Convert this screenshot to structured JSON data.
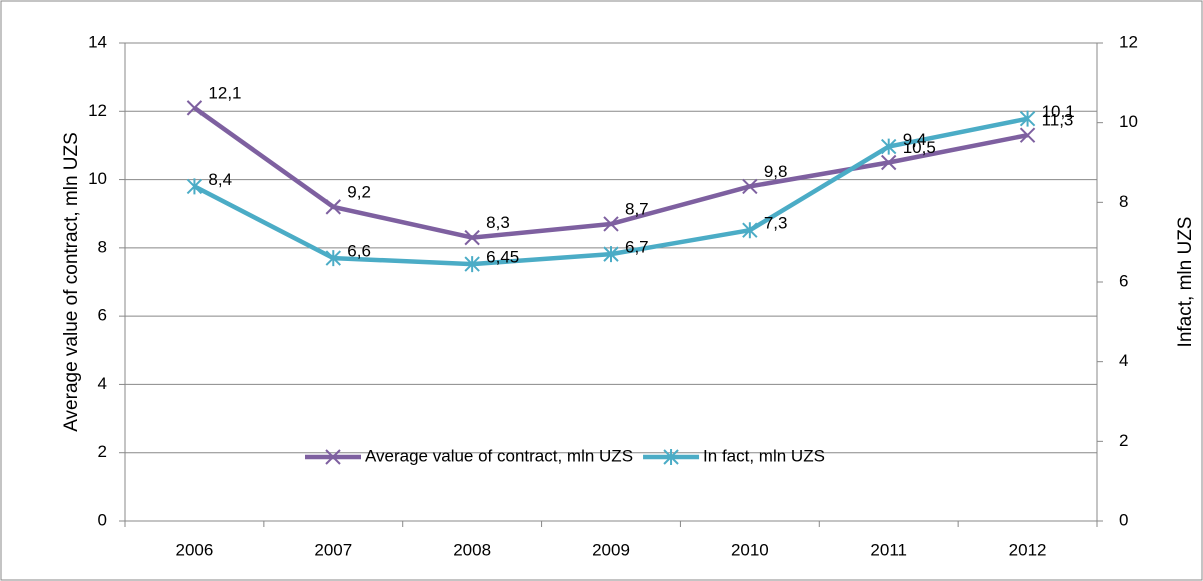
{
  "chart_data": {
    "type": "line",
    "y_label": "Average value of contract, mln UZS",
    "y2_label": "Infact, mln UZS",
    "categories": [
      "2006",
      "2007",
      "2008",
      "2009",
      "2010",
      "2011",
      "2012"
    ],
    "series": [
      {
        "name": "Average value of contract, mln UZS",
        "color": "#7e60a0",
        "marker": "x",
        "values": [
          12.1,
          9.2,
          8.3,
          8.7,
          9.8,
          10.5,
          11.3
        ],
        "value_labels": [
          "12,1",
          "9,2",
          "8,3",
          "8,7",
          "9,8",
          "10,5",
          "11,3"
        ]
      },
      {
        "name": "In fact, mln UZS",
        "color": "#4bacc6",
        "marker": "star",
        "axis": "y2",
        "values": [
          8.4,
          6.6,
          6.45,
          6.7,
          7.3,
          9.4,
          10.1
        ],
        "value_labels": [
          "8,4",
          "6,6",
          "6,45",
          "6,7",
          "7,3",
          "9,4",
          "10,1"
        ]
      }
    ],
    "ylim": [
      0,
      14
    ],
    "yticks": [
      0,
      2,
      4,
      6,
      8,
      10,
      12,
      14
    ],
    "y2lim": [
      0,
      12
    ],
    "y2ticks": [
      0,
      2,
      4,
      6,
      8,
      10,
      12
    ],
    "grid": true,
    "legend": "center"
  }
}
